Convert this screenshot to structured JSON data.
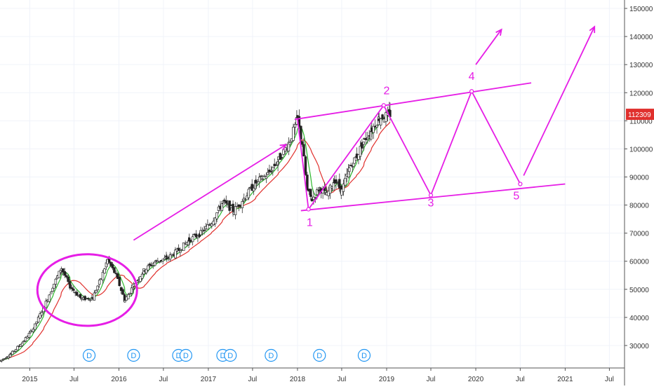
{
  "chart_data": {
    "type": "candlestick",
    "symbol_last_price": "112309",
    "yaxis": {
      "range": [
        22000,
        153000
      ],
      "ticks": [
        {
          "value": 30000,
          "label": "30000"
        },
        {
          "value": 40000,
          "label": "40000"
        },
        {
          "value": 50000,
          "label": "50000"
        },
        {
          "value": 60000,
          "label": "60000"
        },
        {
          "value": 70000,
          "label": "70000"
        },
        {
          "value": 80000,
          "label": "80000"
        },
        {
          "value": 90000,
          "label": "90000"
        },
        {
          "value": 100000,
          "label": "100000"
        },
        {
          "value": 110000,
          "label": "110000"
        },
        {
          "value": 120000,
          "label": "120000"
        },
        {
          "value": 130000,
          "label": "130000"
        },
        {
          "value": 140000,
          "label": "140000"
        },
        {
          "value": 150000,
          "label": "150000"
        }
      ]
    },
    "xaxis": {
      "range": [
        "2014-09-01",
        "2021-09-01"
      ],
      "ticks": [
        {
          "date": "2015-01-01",
          "label": "2015"
        },
        {
          "date": "2015-07-01",
          "label": "Jul"
        },
        {
          "date": "2016-01-01",
          "label": "2016"
        },
        {
          "date": "2016-07-01",
          "label": "Jul"
        },
        {
          "date": "2017-01-01",
          "label": "2017"
        },
        {
          "date": "2017-07-01",
          "label": "Jul"
        },
        {
          "date": "2018-01-01",
          "label": "2018"
        },
        {
          "date": "2018-07-01",
          "label": "Jul"
        },
        {
          "date": "2019-01-01",
          "label": "2019"
        },
        {
          "date": "2019-07-01",
          "label": "Jul"
        },
        {
          "date": "2020-01-01",
          "label": "2020"
        },
        {
          "date": "2020-07-01",
          "label": "Jul"
        },
        {
          "date": "2021-01-01",
          "label": "2021"
        },
        {
          "date": "2021-07-01",
          "label": "Jul"
        }
      ]
    },
    "price_path": [
      [
        "2014-09-01",
        24500
      ],
      [
        "2014-10-15",
        27000
      ],
      [
        "2014-12-01",
        31000
      ],
      [
        "2015-01-15",
        36000
      ],
      [
        "2015-03-01",
        44000
      ],
      [
        "2015-04-10",
        52000
      ],
      [
        "2015-05-10",
        57500
      ],
      [
        "2015-06-15",
        51000
      ],
      [
        "2015-08-01",
        46500
      ],
      [
        "2015-09-15",
        47000
      ],
      [
        "2015-10-20",
        54000
      ],
      [
        "2015-11-15",
        60500
      ],
      [
        "2015-12-20",
        55000
      ],
      [
        "2016-01-25",
        46000
      ],
      [
        "2016-03-01",
        51500
      ],
      [
        "2016-04-15",
        57000
      ],
      [
        "2016-06-01",
        60000
      ],
      [
        "2016-07-15",
        61000
      ],
      [
        "2016-09-01",
        64000
      ],
      [
        "2016-10-15",
        67500
      ],
      [
        "2016-12-01",
        70000
      ],
      [
        "2017-01-15",
        74000
      ],
      [
        "2017-03-01",
        81000
      ],
      [
        "2017-04-15",
        78000
      ],
      [
        "2017-06-01",
        83000
      ],
      [
        "2017-07-15",
        88000
      ],
      [
        "2017-09-01",
        91000
      ],
      [
        "2017-10-15",
        96000
      ],
      [
        "2017-12-01",
        103000
      ],
      [
        "2018-01-01",
        110500
      ],
      [
        "2018-01-20",
        102000
      ],
      [
        "2018-02-10",
        85000
      ],
      [
        "2018-03-01",
        82000
      ],
      [
        "2018-04-01",
        86000
      ],
      [
        "2018-05-01",
        83500
      ],
      [
        "2018-06-01",
        89000
      ],
      [
        "2018-07-01",
        85000
      ],
      [
        "2018-08-01",
        93000
      ],
      [
        "2018-09-01",
        97500
      ],
      [
        "2018-10-01",
        103000
      ],
      [
        "2018-11-01",
        107000
      ],
      [
        "2018-12-01",
        111000
      ],
      [
        "2019-01-15",
        112309
      ]
    ],
    "dividend_markers": {
      "label": "D",
      "dates": [
        "2015-09-01",
        "2016-03-01",
        "2016-09-01",
        "2016-10-01",
        "2017-03-01",
        "2017-04-01",
        "2017-09-15",
        "2018-04-01",
        "2018-10-01"
      ]
    },
    "annotations": {
      "wave_labels": [
        {
          "label": "1",
          "date": "2018-02-20",
          "value": 72500
        },
        {
          "label": "2",
          "date": "2019-01-01",
          "value": 119500
        },
        {
          "label": "3",
          "date": "2019-07-01",
          "value": 79500
        },
        {
          "label": "4",
          "date": "2019-12-15",
          "value": 124500
        },
        {
          "label": "5",
          "date": "2020-06-15",
          "value": 82000
        }
      ],
      "channel_upper": [
        [
          "2017-12-20",
          110500
        ],
        [
          "2020-08-15",
          123500
        ]
      ],
      "channel_lower": [
        [
          "2018-01-15",
          78000
        ],
        [
          "2021-01-01",
          87500
        ]
      ],
      "projection_path": [
        [
          "2018-02-15",
          78500
        ],
        [
          "2018-12-20",
          115500
        ],
        [
          "2019-07-01",
          83500
        ],
        [
          "2019-12-15",
          120500
        ],
        [
          "2020-07-01",
          87500
        ]
      ],
      "decline_path": [
        [
          "2018-01-01",
          110500
        ],
        [
          "2018-02-15",
          78500
        ]
      ],
      "arrows": [
        [
          [
            "2016-03-01",
            67500
          ],
          [
            "2017-11-15",
            101500
          ]
        ],
        [
          [
            "2020-01-01",
            130000
          ],
          [
            "2020-04-15",
            142500
          ]
        ],
        [
          [
            "2020-07-15",
            90500
          ],
          [
            "2021-05-01",
            143500
          ]
        ]
      ],
      "ellipse_around": {
        "from": "2015-02-01",
        "to": "2016-03-15",
        "low": 37000,
        "high": 62500
      }
    }
  }
}
